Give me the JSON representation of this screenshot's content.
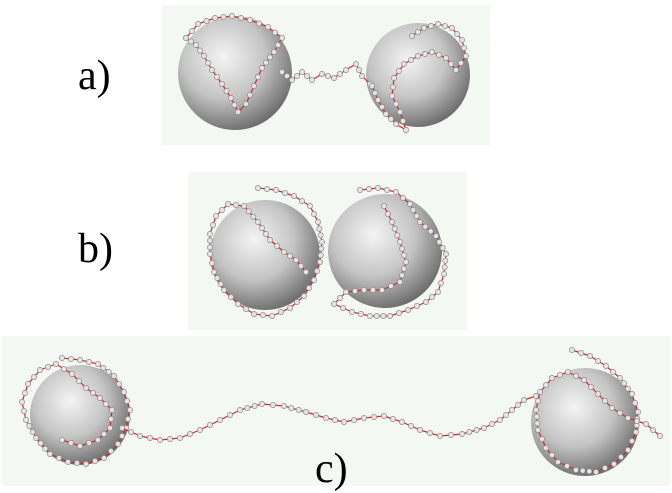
{
  "panels": [
    {
      "id": "a",
      "label": "a)"
    },
    {
      "id": "b",
      "label": "b)"
    },
    {
      "id": "c",
      "label": "c)"
    }
  ],
  "colors": {
    "sphere_light": "#f4f4f4",
    "sphere_mid": "#c4c4c4",
    "sphere_dark": "#6e6e6e",
    "chain_bond": "#dd2222",
    "bead_fill": "#e4e4e4",
    "bead_stroke": "#8a8a8a",
    "panel_background": "#f4f8f2"
  }
}
